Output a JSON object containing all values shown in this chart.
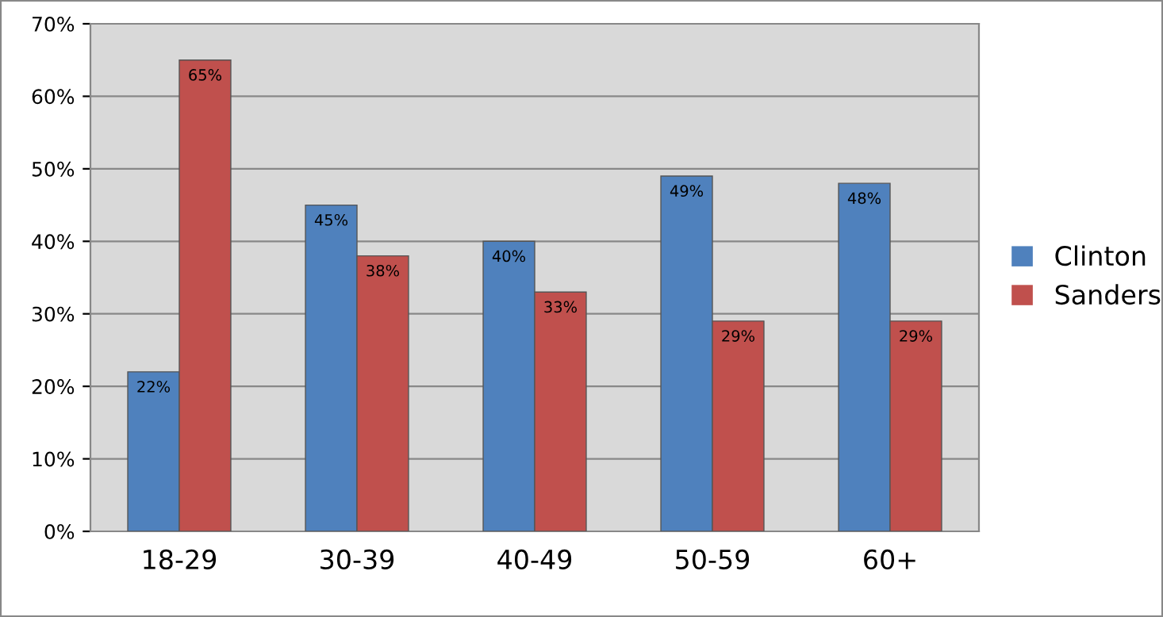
{
  "chart_data": {
    "type": "bar",
    "categories": [
      "18-29",
      "30-39",
      "40-49",
      "50-59",
      "60+"
    ],
    "series": [
      {
        "name": "Clinton",
        "color": "#4f81bd",
        "values": [
          22,
          45,
          40,
          49,
          48
        ],
        "value_labels": [
          "22%",
          "45%",
          "40%",
          "49%",
          "48%"
        ]
      },
      {
        "name": "Sanders",
        "color": "#c0504d",
        "values": [
          65,
          38,
          33,
          29,
          29
        ],
        "value_labels": [
          "65%",
          "38%",
          "33%",
          "29%",
          "29%"
        ]
      }
    ],
    "ylim": [
      0,
      70
    ],
    "yticks": [
      {
        "value": 0,
        "label": "0%"
      },
      {
        "value": 10,
        "label": "10%"
      },
      {
        "value": 20,
        "label": "20%"
      },
      {
        "value": 30,
        "label": "30%"
      },
      {
        "value": 40,
        "label": "40%"
      },
      {
        "value": 50,
        "label": "50%"
      },
      {
        "value": 60,
        "label": "60%"
      },
      {
        "value": 70,
        "label": "70%"
      }
    ],
    "grid": "y",
    "legend": "right"
  }
}
